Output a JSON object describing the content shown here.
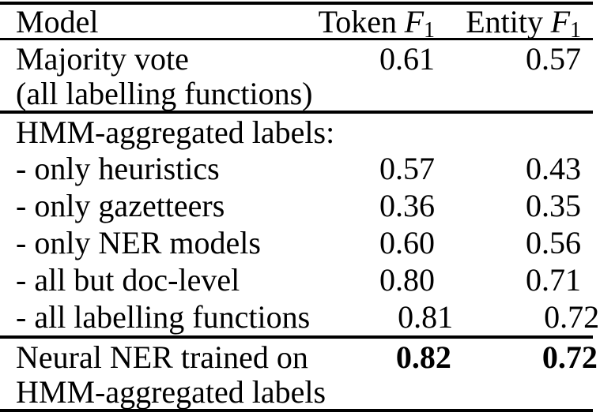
{
  "colors": {
    "text": "#000000",
    "background": "#ffffff",
    "rule": "#000000"
  },
  "header": {
    "model": "Model",
    "token": {
      "label": "Token",
      "symbol": "F",
      "sub": "1"
    },
    "entity": {
      "label": "Entity",
      "symbol": "F",
      "sub": "1"
    }
  },
  "rows": [
    {
      "model": "Majority vote",
      "token_f1": "0.61",
      "entity_f1": "0.57"
    },
    {
      "model": "(all labelling functions)",
      "token_f1": "",
      "entity_f1": ""
    },
    {
      "model": "HMM-aggregated labels:",
      "token_f1": "",
      "entity_f1": ""
    },
    {
      "model": "- only heuristics",
      "token_f1": "0.57",
      "entity_f1": "0.43"
    },
    {
      "model": "- only gazetteers",
      "token_f1": "0.36",
      "entity_f1": "0.35"
    },
    {
      "model": "- only NER models",
      "token_f1": "0.60",
      "entity_f1": "0.56"
    },
    {
      "model": "- all but doc-level",
      "token_f1": "0.80",
      "entity_f1": "0.71"
    },
    {
      "model": "- all labelling functions",
      "token_f1": "0.81",
      "entity_f1": "0.72"
    },
    {
      "model": "Neural NER trained on",
      "token_f1": "0.82",
      "entity_f1": "0.72"
    },
    {
      "model": "HMM-aggregated labels",
      "token_f1": "",
      "entity_f1": ""
    }
  ]
}
